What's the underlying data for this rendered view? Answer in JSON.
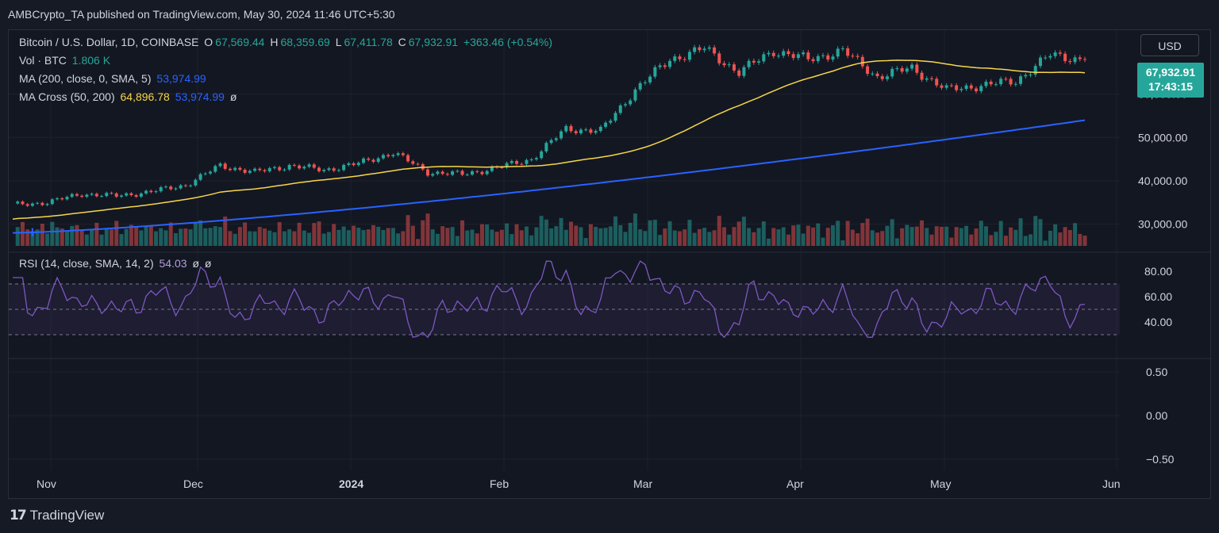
{
  "header": {
    "publish_line": "AMBCrypto_TA published on TradingView.com, May 30, 2024 11:46 UTC+5:30"
  },
  "legend": {
    "symbol": "Bitcoin / U.S. Dollar, 1D, COINBASE",
    "open_label": "O",
    "open": "67,569.44",
    "high_label": "H",
    "high": "68,359.69",
    "low_label": "L",
    "low": "67,411.78",
    "close_label": "C",
    "close": "67,932.91",
    "change": "+363.46 (+0.54%)",
    "vol_label": "Vol · BTC",
    "vol_value": "1.806 K",
    "ma_label": "MA (200, close, 0, SMA, 5)",
    "ma_value": "53,974.99",
    "macross_label": "MA Cross (50, 200)",
    "macross_fast": "64,896.78",
    "macross_slow": "53,974.99",
    "macross_flag": "ø",
    "rsi_label": "RSI (14, close, SMA, 14, 2)",
    "rsi_value": "54.03",
    "rsi_flag1": "ø",
    "rsi_flag2": "ø"
  },
  "currency_button": "USD",
  "price_tag": {
    "price": "67,932.91",
    "countdown": "17:43:15"
  },
  "axes": {
    "price_ticks": [
      "60,000.00",
      "50,000.00",
      "40,000.00",
      "30,000.00"
    ],
    "rsi_ticks": [
      "80.00",
      "60.00",
      "40.00"
    ],
    "lower_ticks": [
      "0.50",
      "0.00",
      "−0.50"
    ],
    "time_labels": [
      "Nov",
      "Dec",
      "2024",
      "Feb",
      "Mar",
      "Apr",
      "May",
      "Jun"
    ]
  },
  "colors": {
    "up": "#26a69a",
    "down": "#ef5350",
    "ma200": "#2962ff",
    "ma50": "#f7d64a",
    "rsi": "#7e57c2"
  },
  "chart_data": {
    "type": "candlestick",
    "title": "Bitcoin / U.S. Dollar, 1D, COINBASE",
    "y_range": [
      25000,
      72000
    ],
    "weekly_close": [
      {
        "week_of": "2023-10-23",
        "close": 34500
      },
      {
        "week_of": "2023-10-30",
        "close": 35000
      },
      {
        "week_of": "2023-11-06",
        "close": 37000
      },
      {
        "week_of": "2023-11-13",
        "close": 36500
      },
      {
        "week_of": "2023-11-20",
        "close": 37500
      },
      {
        "week_of": "2023-11-27",
        "close": 39000
      },
      {
        "week_of": "2023-12-04",
        "close": 43500
      },
      {
        "week_of": "2023-12-11",
        "close": 42000
      },
      {
        "week_of": "2023-12-18",
        "close": 43500
      },
      {
        "week_of": "2023-12-25",
        "close": 42500
      },
      {
        "week_of": "2024-01-01",
        "close": 44000
      },
      {
        "week_of": "2024-01-08",
        "close": 46500
      },
      {
        "week_of": "2024-01-15",
        "close": 42000
      },
      {
        "week_of": "2024-01-22",
        "close": 41500
      },
      {
        "week_of": "2024-01-29",
        "close": 43000
      },
      {
        "week_of": "2024-02-05",
        "close": 45000
      },
      {
        "week_of": "2024-02-12",
        "close": 52000
      },
      {
        "week_of": "2024-02-19",
        "close": 51500
      },
      {
        "week_of": "2024-02-26",
        "close": 61000
      },
      {
        "week_of": "2024-03-04",
        "close": 68000
      },
      {
        "week_of": "2024-03-11",
        "close": 70500
      },
      {
        "week_of": "2024-03-18",
        "close": 65000
      },
      {
        "week_of": "2024-03-25",
        "close": 70000
      },
      {
        "week_of": "2024-04-01",
        "close": 68000
      },
      {
        "week_of": "2024-04-08",
        "close": 70000
      },
      {
        "week_of": "2024-04-15",
        "close": 64000
      },
      {
        "week_of": "2024-04-22",
        "close": 66000
      },
      {
        "week_of": "2024-04-29",
        "close": 61000
      },
      {
        "week_of": "2024-05-06",
        "close": 62000
      },
      {
        "week_of": "2024-05-13",
        "close": 63000
      },
      {
        "week_of": "2024-05-20",
        "close": 69000
      },
      {
        "week_of": "2024-05-27",
        "close": 67932.91
      }
    ],
    "ma50_end": 64896.78,
    "ma200_end": 53974.99,
    "rsi_last": 54.03,
    "rsi_bands": [
      70,
      30
    ],
    "rsi_shown_range": [
      20,
      90
    ]
  }
}
